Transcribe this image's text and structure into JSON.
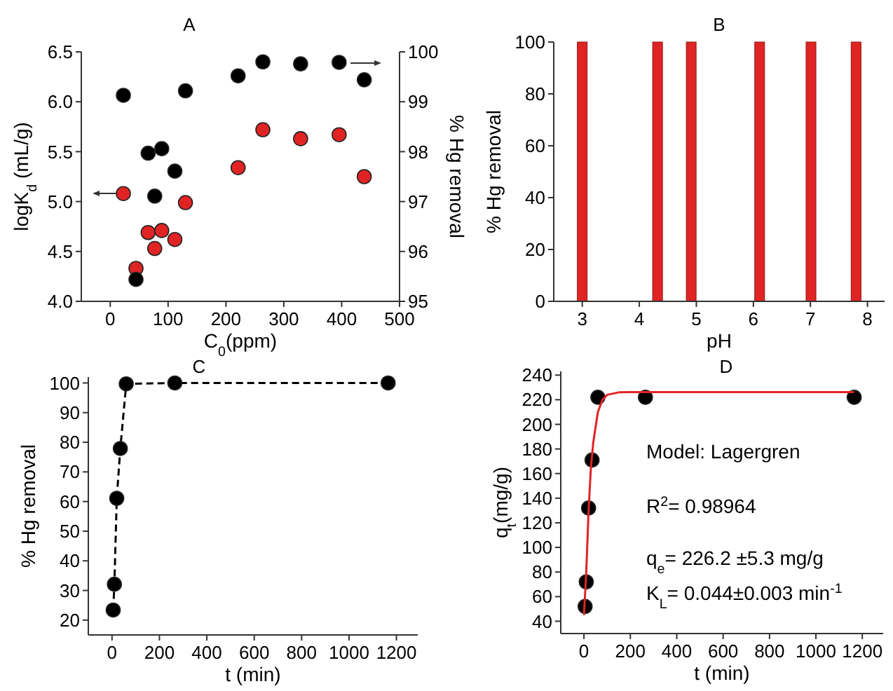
{
  "chart_data": [
    {
      "type": "scatter",
      "title": "A",
      "xlabel": "C$_{0}$(ppm)",
      "ylabel": "logK$_{d}$ (mL/g)",
      "y2label": "% Hg removal",
      "marker": "circle",
      "xlim": [
        -50,
        500
      ],
      "xticks": [
        0,
        100,
        200,
        300,
        400,
        500
      ],
      "ylim": [
        4,
        6.5
      ],
      "yticks": [
        {
          "value": 4,
          "label": "4.0"
        },
        4.5,
        {
          "value": 5,
          "label": "5.0"
        },
        5.5,
        {
          "value": 6,
          "label": "6.0"
        },
        6.5
      ],
      "y2lim": [
        95,
        100
      ],
      "y2ticks": [
        95,
        96,
        97,
        98,
        99,
        100
      ],
      "x": [
        22.7,
        44.5,
        65.5,
        76.9,
        89,
        111.7,
        130,
        221,
        263.8,
        329,
        395.6,
        439
      ],
      "series": [
        {
          "color": "#e02424",
          "values": [
            5.08,
            4.33,
            4.69,
            4.53,
            4.71,
            4.62,
            4.99,
            5.34,
            5.72,
            5.63,
            5.67,
            5.25
          ]
        },
        {
          "color": "#000000",
          "axis": "y2",
          "values": [
            99.13,
            95.44,
            97.97,
            97.11,
            98.06,
            97.61,
            99.22,
            99.52,
            99.8,
            99.76,
            99.79,
            99.44
          ]
        }
      ]
    },
    {
      "type": "bar",
      "title": "B",
      "xlabel": "pH",
      "ylabel": "% Hg removal",
      "xlim": [
        2.5,
        8.3
      ],
      "xticks": [
        3,
        4,
        5,
        6,
        7,
        8
      ],
      "ylim": [
        0,
        100
      ],
      "yticks": [
        0,
        20,
        40,
        60,
        80,
        100
      ],
      "color": "#e02424",
      "x": [
        3,
        4.32,
        4.91,
        6.11,
        7.01,
        7.8
      ],
      "values": [
        100,
        100,
        100,
        100,
        100,
        100
      ]
    },
    {
      "type": "line",
      "title": "C",
      "xlabel": "t (min)",
      "ylabel": "% Hg removal",
      "marker": "circle",
      "line_style": "dashed",
      "xlim": [
        -100,
        1290
      ],
      "xticks": [
        0,
        200,
        400,
        600,
        800,
        1000,
        1200
      ],
      "ylim": [
        15,
        102
      ],
      "yticks": [
        20,
        30,
        40,
        50,
        60,
        70,
        80,
        90,
        100
      ],
      "x": [
        5,
        10,
        20,
        35,
        60,
        265,
        1165
      ],
      "series": [
        {
          "color": "#000000",
          "values": [
            23.4,
            32.1,
            61.1,
            77.9,
            99.7,
            100,
            100
          ]
        }
      ]
    },
    {
      "type": "scatter",
      "title": "D",
      "xlabel": "t (min)",
      "ylabel": "q$_{t}$(mg/g)",
      "marker": "circle",
      "xlim": [
        -100,
        1290
      ],
      "xticks": [
        0,
        200,
        400,
        600,
        800,
        1000,
        1200
      ],
      "ylim": [
        30,
        243
      ],
      "yticks": [
        40,
        60,
        80,
        100,
        120,
        140,
        160,
        180,
        200,
        220,
        240
      ],
      "annotations": [
        "Model: Lagergren",
        "R$^{2}$= 0.98964",
        "q$_{e}$= 226.2 ±5.3 mg/g",
        "K$_{L}$= 0.044±0.003 min$^{-1}$"
      ],
      "x": [
        5,
        10,
        20,
        35,
        60,
        265,
        1165
      ],
      "series": [
        {
          "color": "#000000",
          "values": [
            52,
            72,
            132,
            171,
            222,
            222,
            222
          ]
        },
        {
          "type": "line",
          "color": "#e02424",
          "marker": "none",
          "x": [
            0,
            10,
            20,
            30,
            40,
            60,
            80,
            100,
            150,
            200,
            1165
          ],
          "values": [
            45,
            80,
            130,
            165,
            185,
            210,
            220,
            224,
            226,
            226.2,
            226.2
          ]
        }
      ]
    }
  ]
}
